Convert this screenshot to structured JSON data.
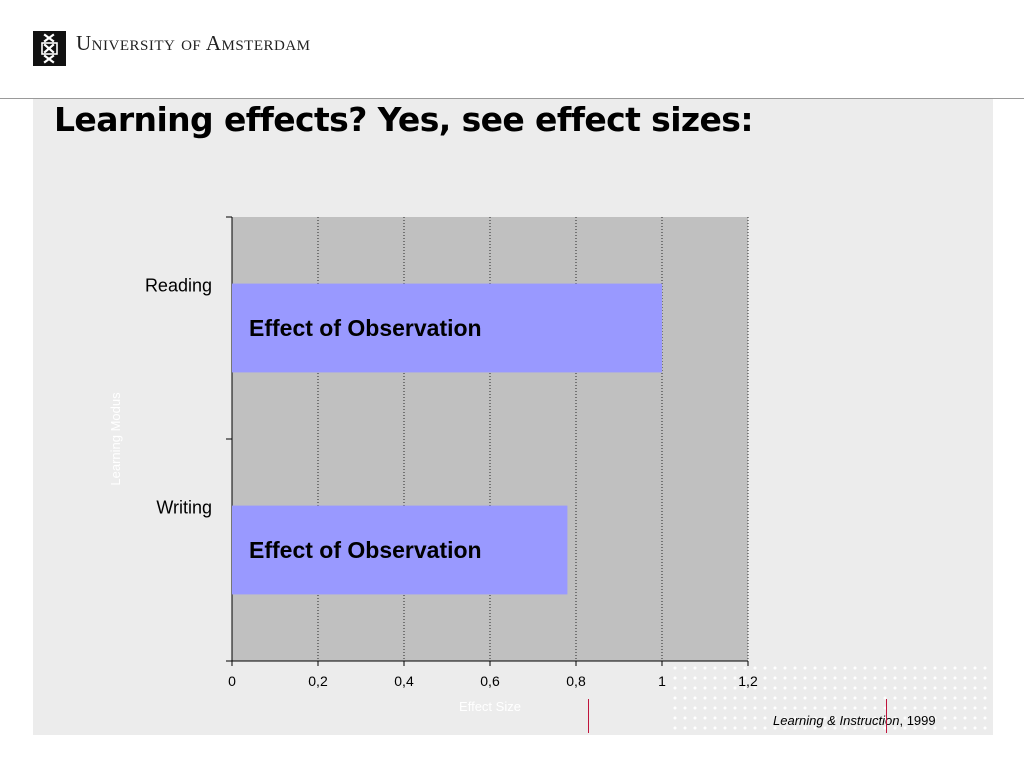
{
  "header": {
    "logo_text": "University of Amsterdam"
  },
  "slide": {
    "title": "Learning effects? Yes, see effect sizes:"
  },
  "chart_data": {
    "type": "bar",
    "orientation": "horizontal",
    "categories": [
      "Reading",
      "Writing"
    ],
    "values": [
      1.0,
      0.78
    ],
    "bar_labels": [
      "Effect of Observation",
      "Effect of Observation"
    ],
    "xlabel": "Effect Size",
    "ylabel": "Learning Modus",
    "xlim": [
      0,
      1.2
    ],
    "xticks": [
      "0",
      "0,2",
      "0,4",
      "0,6",
      "0,8",
      "1",
      "1,2"
    ],
    "grid": "vertical-dotted",
    "legend": "none",
    "colors": {
      "bar": "#9999ff",
      "plot_bg": "#c0c0c0",
      "axis_title": "#ffffff"
    }
  },
  "footer": {
    "source_journal": "Learning & Instruction",
    "source_rest": ", 1999"
  }
}
